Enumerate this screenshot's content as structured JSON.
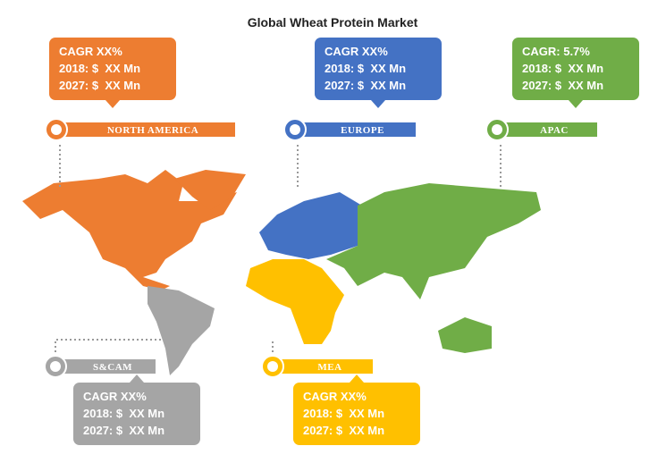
{
  "title": "Global Wheat Protein Market",
  "regions": [
    {
      "label": "NORTH AMERICA",
      "lines": [
        "CAGR XX%",
        "2018: $  XX Mn",
        "2027: $  XX Mn"
      ]
    },
    {
      "label": "EUROPE",
      "lines": [
        "CAGR XX%",
        "2018: $  XX Mn",
        "2027: $  XX Mn"
      ]
    },
    {
      "label": "APAC",
      "lines": [
        "CAGR: 5.7%",
        "2018: $  XX Mn",
        "2027: $  XX Mn"
      ]
    },
    {
      "label": "S&CAM",
      "lines": [
        "CAGR XX%",
        "2018: $  XX Mn",
        "2027: $  XX Mn"
      ]
    },
    {
      "label": "MEA",
      "lines": [
        "CAGR XX%",
        "2018: $  XX Mn",
        "2027: $  XX Mn"
      ]
    }
  ]
}
